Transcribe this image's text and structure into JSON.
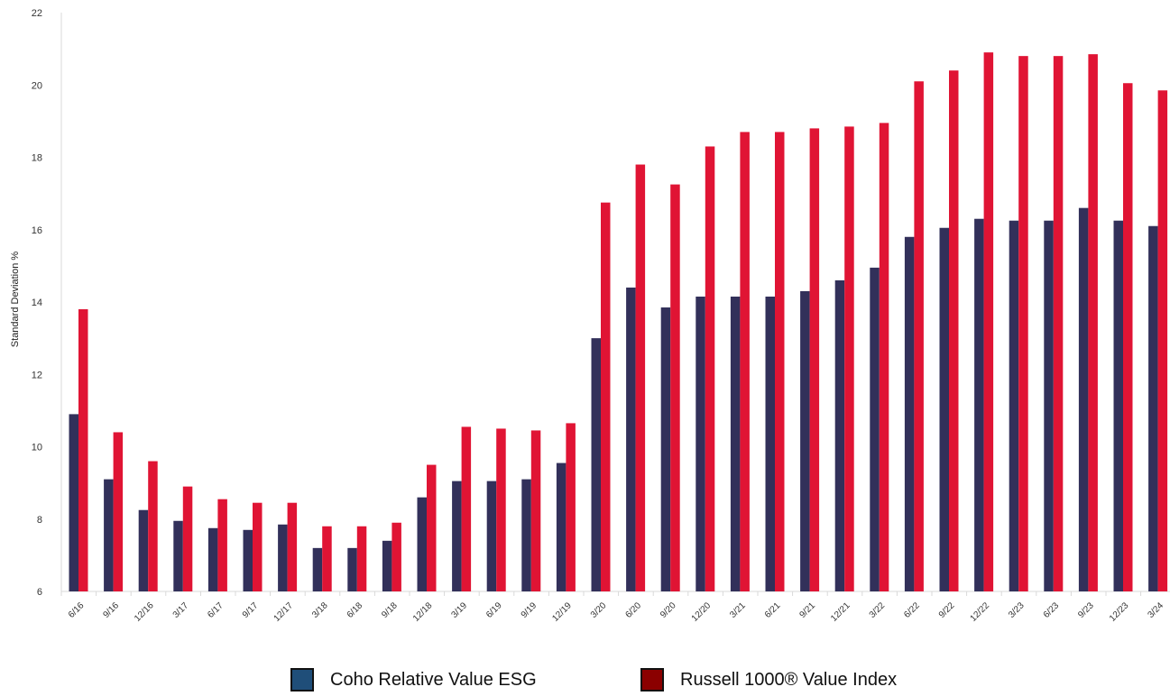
{
  "chart_data": {
    "type": "bar",
    "ylabel": "Standard Deviation %",
    "xlabel": "",
    "ylim": [
      6,
      22
    ],
    "yticks": [
      6,
      8,
      10,
      12,
      14,
      16,
      18,
      20,
      22
    ],
    "grid": false,
    "legend_position": "bottom",
    "categories": [
      "6/16",
      "9/16",
      "12/16",
      "3/17",
      "6/17",
      "9/17",
      "12/17",
      "3/18",
      "6/18",
      "9/18",
      "12/18",
      "3/19",
      "6/19",
      "9/19",
      "12/19",
      "3/20",
      "6/20",
      "9/20",
      "12/20",
      "3/21",
      "6/21",
      "9/21",
      "12/21",
      "3/22",
      "6/22",
      "9/22",
      "12/22",
      "3/23",
      "6/23",
      "9/23",
      "12/23",
      "3/24"
    ],
    "series": [
      {
        "name": "Coho Relative Value ESG",
        "color": "#32305a",
        "legend_color": "#1f4e79",
        "values": [
          10.9,
          9.1,
          8.25,
          7.95,
          7.75,
          7.7,
          7.85,
          7.2,
          7.2,
          7.4,
          8.6,
          9.05,
          9.05,
          9.1,
          9.55,
          13.0,
          14.4,
          13.85,
          14.15,
          14.15,
          14.15,
          14.3,
          14.6,
          14.95,
          15.8,
          16.05,
          16.3,
          16.25,
          16.25,
          16.6,
          16.25,
          16.1
        ]
      },
      {
        "name": "Russell 1000® Value Index",
        "color": "#e01434",
        "legend_color": "#8b0000",
        "values": [
          13.8,
          10.4,
          9.6,
          8.9,
          8.55,
          8.45,
          8.45,
          7.8,
          7.8,
          7.9,
          9.5,
          10.55,
          10.5,
          10.45,
          10.65,
          16.75,
          17.8,
          17.25,
          18.3,
          18.7,
          18.7,
          18.8,
          18.85,
          18.95,
          20.1,
          20.4,
          20.9,
          20.8,
          20.8,
          20.85,
          20.05,
          19.85
        ]
      }
    ]
  }
}
